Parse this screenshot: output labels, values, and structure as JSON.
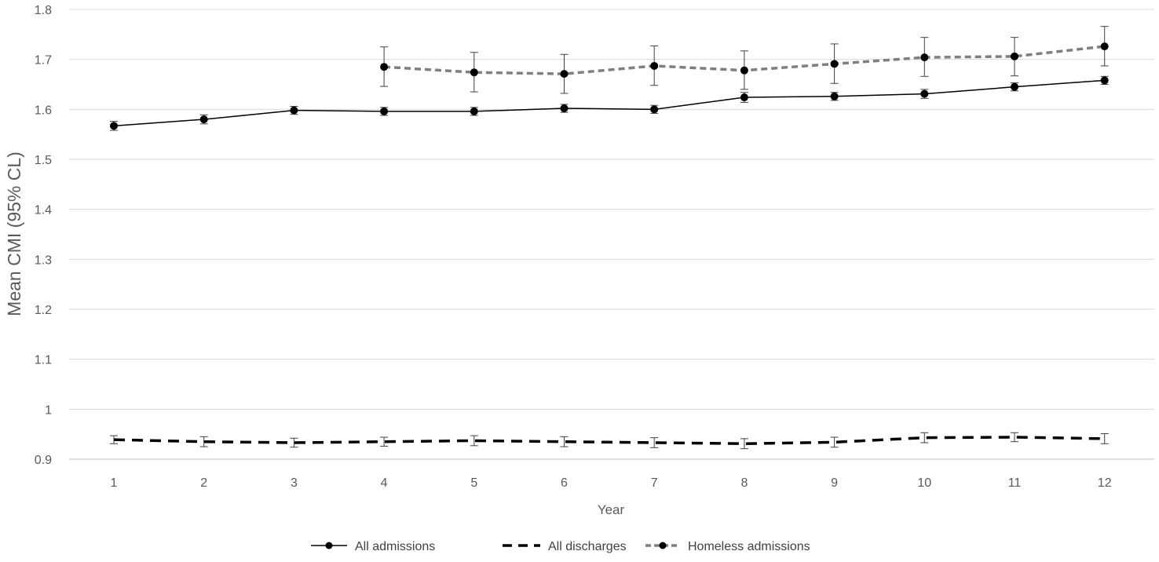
{
  "chart_data": {
    "type": "line",
    "title": "",
    "xlabel": "Year",
    "ylabel": "Mean CMI (95% CL)",
    "x": [
      1,
      2,
      3,
      4,
      5,
      6,
      7,
      8,
      9,
      10,
      11,
      12
    ],
    "ylim": [
      0.9,
      1.8
    ],
    "yticks": [
      "0.9",
      "1",
      "1.1",
      "1.2",
      "1.3",
      "1.4",
      "1.5",
      "1.6",
      "1.7",
      "1.8"
    ],
    "grid": "horizontal",
    "legend_position": "bottom",
    "series": [
      {
        "name": "All admissions",
        "style": "solid-markers",
        "color": "#000000",
        "x": [
          1,
          2,
          3,
          4,
          5,
          6,
          7,
          8,
          9,
          10,
          11,
          12
        ],
        "values": [
          1.567,
          1.58,
          1.598,
          1.596,
          1.596,
          1.602,
          1.6,
          1.624,
          1.626,
          1.631,
          1.645,
          1.658
        ],
        "lower": [
          1.558,
          1.571,
          1.59,
          1.588,
          1.588,
          1.594,
          1.592,
          1.614,
          1.618,
          1.622,
          1.637,
          1.65
        ],
        "upper": [
          1.576,
          1.589,
          1.606,
          1.604,
          1.604,
          1.61,
          1.608,
          1.634,
          1.634,
          1.64,
          1.653,
          1.666
        ]
      },
      {
        "name": "All discharges",
        "style": "dashed",
        "color": "#000000",
        "x": [
          1,
          2,
          3,
          4,
          5,
          6,
          7,
          8,
          9,
          10,
          11,
          12
        ],
        "values": [
          0.939,
          0.935,
          0.933,
          0.935,
          0.937,
          0.935,
          0.933,
          0.931,
          0.934,
          0.943,
          0.944,
          0.941
        ],
        "lower": [
          0.931,
          0.925,
          0.924,
          0.926,
          0.927,
          0.925,
          0.923,
          0.921,
          0.924,
          0.933,
          0.935,
          0.931
        ],
        "upper": [
          0.947,
          0.945,
          0.942,
          0.944,
          0.947,
          0.945,
          0.943,
          0.941,
          0.944,
          0.953,
          0.953,
          0.951
        ]
      },
      {
        "name": "Homeless admissions",
        "style": "dashed-markers",
        "color": "#7f7f7f",
        "x": [
          4,
          5,
          6,
          7,
          8,
          9,
          10,
          11,
          12
        ],
        "values": [
          1.685,
          1.674,
          1.671,
          1.687,
          1.678,
          1.691,
          1.704,
          1.706,
          1.726
        ],
        "lower": [
          1.646,
          1.635,
          1.632,
          1.648,
          1.64,
          1.652,
          1.666,
          1.667,
          1.687
        ],
        "upper": [
          1.725,
          1.714,
          1.71,
          1.727,
          1.717,
          1.731,
          1.744,
          1.744,
          1.766
        ]
      }
    ]
  }
}
